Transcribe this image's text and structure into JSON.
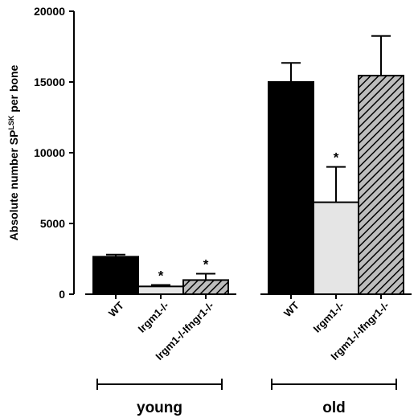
{
  "chart_data": {
    "type": "bar",
    "ylabel": "Absolute number SP",
    "ylabel_sup": "LSK",
    "ylabel_suffix": " per bone",
    "ylim": [
      0,
      20000
    ],
    "yticks": [
      "0",
      "5000",
      "10000",
      "15000",
      "20000"
    ],
    "groups": [
      {
        "label": "young",
        "bars": [
          {
            "category": "WT",
            "value": 2650,
            "error": 150,
            "fill": "solid-black",
            "significant": false
          },
          {
            "category": "Irgm1-/-",
            "value": 550,
            "error": 100,
            "fill": "light-gray",
            "significant": true
          },
          {
            "category": "Irgm1-/-Ifngr1-/-",
            "value": 1000,
            "error": 450,
            "fill": "hatched",
            "significant": true
          }
        ]
      },
      {
        "label": "old",
        "bars": [
          {
            "category": "WT",
            "value": 15000,
            "error": 1350,
            "fill": "solid-black",
            "significant": false
          },
          {
            "category": "Irgm1-/-",
            "value": 6500,
            "error": 2500,
            "fill": "light-gray",
            "significant": true
          },
          {
            "category": "Irgm1-/-Ifngr1-/-",
            "value": 15450,
            "error": 2800,
            "fill": "hatched",
            "significant": false
          }
        ]
      }
    ],
    "significance_marker": "*",
    "colors": {
      "solid": "#000000",
      "light": "#e5e5e5",
      "hatch_bg": "#bdbdbd",
      "hatch_line": "#000000"
    }
  }
}
